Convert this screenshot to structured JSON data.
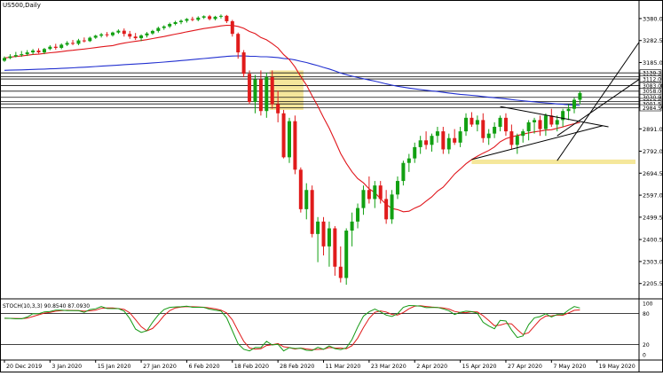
{
  "chart_title": "US500,Daily",
  "indicator_label": "STOCH(10,3,3) 90.8540 87.0930",
  "colors": {
    "bull": "#12a012",
    "bear": "#e01b1b",
    "ma_fast": "#e0161c",
    "ma_slow": "#2230d0",
    "grid": "#111111",
    "highlight": "#f2df7a",
    "stoch_k": "#159a15",
    "stoch_d": "#e01b1b"
  },
  "chart_data": {
    "type": "candlestick",
    "symbol": "US500",
    "timeframe": "Daily",
    "y_ticks": [
      3380.0,
      3282.5,
      3185.0,
      3083.0,
      2989.5,
      2891.0,
      2792.0,
      2694.5,
      2597.0,
      2499.5,
      2400.5,
      2303.0,
      2205.5
    ],
    "y_range": [
      2165,
      3415
    ],
    "x_labels": [
      "20 Dec 2019",
      "3 Jan 2020",
      "15 Jan 2020",
      "27 Jan 2020",
      "6 Feb 2020",
      "18 Feb 2020",
      "28 Feb 2020",
      "11 Mar 2020",
      "23 Mar 2020",
      "2 Apr 2020",
      "15 Apr 2020",
      "27 Apr 2020",
      "7 May 2020",
      "19 May 2020"
    ],
    "x_label_index": [
      0,
      8,
      16,
      24,
      32,
      40,
      48,
      56,
      64,
      72,
      80,
      88,
      96,
      104
    ],
    "price_level_labels": [
      3139.2,
      3122.5,
      3112.0,
      3083.0,
      3058.0,
      3030.9,
      3012.5,
      3001.5,
      2984.5
    ],
    "ohlc": [
      [
        3193,
        3212,
        3188,
        3205
      ],
      [
        3205,
        3222,
        3200,
        3212
      ],
      [
        3212,
        3232,
        3208,
        3218
      ],
      [
        3218,
        3236,
        3210,
        3222
      ],
      [
        3222,
        3240,
        3214,
        3230
      ],
      [
        3230,
        3245,
        3220,
        3238
      ],
      [
        3238,
        3248,
        3225,
        3230
      ],
      [
        3230,
        3250,
        3222,
        3245
      ],
      [
        3245,
        3262,
        3240,
        3255
      ],
      [
        3255,
        3268,
        3242,
        3250
      ],
      [
        3250,
        3270,
        3244,
        3264
      ],
      [
        3264,
        3280,
        3258,
        3272
      ],
      [
        3272,
        3285,
        3262,
        3268
      ],
      [
        3268,
        3290,
        3262,
        3283
      ],
      [
        3283,
        3296,
        3274,
        3280
      ],
      [
        3280,
        3300,
        3276,
        3295
      ],
      [
        3295,
        3308,
        3290,
        3304
      ],
      [
        3304,
        3316,
        3296,
        3310
      ],
      [
        3310,
        3320,
        3298,
        3306
      ],
      [
        3306,
        3322,
        3300,
        3318
      ],
      [
        3318,
        3332,
        3312,
        3326
      ],
      [
        3326,
        3336,
        3300,
        3312
      ],
      [
        3312,
        3325,
        3290,
        3300
      ],
      [
        3300,
        3316,
        3285,
        3293
      ],
      [
        3293,
        3310,
        3280,
        3305
      ],
      [
        3305,
        3320,
        3296,
        3314
      ],
      [
        3314,
        3330,
        3308,
        3325
      ],
      [
        3325,
        3344,
        3318,
        3338
      ],
      [
        3338,
        3350,
        3330,
        3345
      ],
      [
        3345,
        3362,
        3338,
        3356
      ],
      [
        3356,
        3370,
        3350,
        3364
      ],
      [
        3364,
        3376,
        3355,
        3370
      ],
      [
        3370,
        3382,
        3362,
        3378
      ],
      [
        3378,
        3388,
        3368,
        3374
      ],
      [
        3374,
        3390,
        3368,
        3384
      ],
      [
        3384,
        3394,
        3378,
        3390
      ],
      [
        3390,
        3396,
        3372,
        3378
      ],
      [
        3378,
        3392,
        3372,
        3388
      ],
      [
        3388,
        3398,
        3380,
        3392
      ],
      [
        3392,
        3396,
        3360,
        3368
      ],
      [
        3368,
        3374,
        3300,
        3312
      ],
      [
        3312,
        3318,
        3202,
        3230
      ],
      [
        3230,
        3240,
        3120,
        3135
      ],
      [
        3135,
        3150,
        3000,
        3010
      ],
      [
        3010,
        3130,
        2960,
        3110
      ],
      [
        3110,
        3150,
        2950,
        2970
      ],
      [
        2970,
        3140,
        2940,
        3120
      ],
      [
        3120,
        3150,
        2980,
        3000
      ],
      [
        3000,
        3060,
        2920,
        2960
      ],
      [
        2960,
        2975,
        2760,
        2765
      ],
      [
        2765,
        2940,
        2740,
        2925
      ],
      [
        2925,
        2950,
        2690,
        2710
      ],
      [
        2710,
        2720,
        2520,
        2535
      ],
      [
        2535,
        2650,
        2490,
        2620
      ],
      [
        2620,
        2640,
        2410,
        2425
      ],
      [
        2425,
        2500,
        2300,
        2480
      ],
      [
        2480,
        2500,
        2330,
        2370
      ],
      [
        2370,
        2480,
        2280,
        2450
      ],
      [
        2450,
        2460,
        2240,
        2280
      ],
      [
        2280,
        2370,
        2210,
        2230
      ],
      [
        2230,
        2450,
        2200,
        2440
      ],
      [
        2440,
        2520,
        2370,
        2480
      ],
      [
        2480,
        2560,
        2450,
        2540
      ],
      [
        2540,
        2640,
        2510,
        2620
      ],
      [
        2620,
        2680,
        2560,
        2580
      ],
      [
        2580,
        2660,
        2540,
        2640
      ],
      [
        2640,
        2660,
        2560,
        2580
      ],
      [
        2580,
        2620,
        2470,
        2490
      ],
      [
        2490,
        2620,
        2470,
        2600
      ],
      [
        2600,
        2680,
        2580,
        2660
      ],
      [
        2660,
        2750,
        2640,
        2740
      ],
      [
        2740,
        2780,
        2700,
        2760
      ],
      [
        2760,
        2830,
        2740,
        2810
      ],
      [
        2810,
        2860,
        2780,
        2840
      ],
      [
        2840,
        2880,
        2800,
        2820
      ],
      [
        2820,
        2870,
        2790,
        2860
      ],
      [
        2860,
        2900,
        2830,
        2880
      ],
      [
        2880,
        2900,
        2780,
        2800
      ],
      [
        2800,
        2870,
        2780,
        2850
      ],
      [
        2850,
        2890,
        2820,
        2830
      ],
      [
        2830,
        2900,
        2810,
        2880
      ],
      [
        2880,
        2960,
        2860,
        2940
      ],
      [
        2940,
        2965,
        2900,
        2910
      ],
      [
        2910,
        2950,
        2880,
        2930
      ],
      [
        2930,
        2960,
        2830,
        2850
      ],
      [
        2850,
        2890,
        2820,
        2870
      ],
      [
        2870,
        2920,
        2850,
        2900
      ],
      [
        2900,
        2950,
        2880,
        2940
      ],
      [
        2940,
        2960,
        2860,
        2880
      ],
      [
        2880,
        2910,
        2800,
        2820
      ],
      [
        2820,
        2870,
        2780,
        2860
      ],
      [
        2860,
        2890,
        2830,
        2880
      ],
      [
        2880,
        2930,
        2840,
        2920
      ],
      [
        2920,
        2940,
        2870,
        2930
      ],
      [
        2930,
        2950,
        2860,
        2890
      ],
      [
        2890,
        2960,
        2860,
        2950
      ],
      [
        2950,
        2980,
        2900,
        2910
      ],
      [
        2910,
        2950,
        2880,
        2930
      ],
      [
        2930,
        2980,
        2900,
        2970
      ],
      [
        2970,
        3000,
        2930,
        2980
      ],
      [
        2980,
        3030,
        2960,
        3020
      ],
      [
        3020,
        3060,
        3000,
        3050
      ]
    ],
    "ma_fast_period": 20,
    "ma_slow_period": 100,
    "stochastic": {
      "k_period": 10,
      "d_period": 3,
      "slowing": 3,
      "k_last": 90.854,
      "d_last": 87.093,
      "levels": [
        20,
        80
      ],
      "y_ticks": [
        100,
        80,
        20,
        0
      ]
    },
    "grid": false
  }
}
